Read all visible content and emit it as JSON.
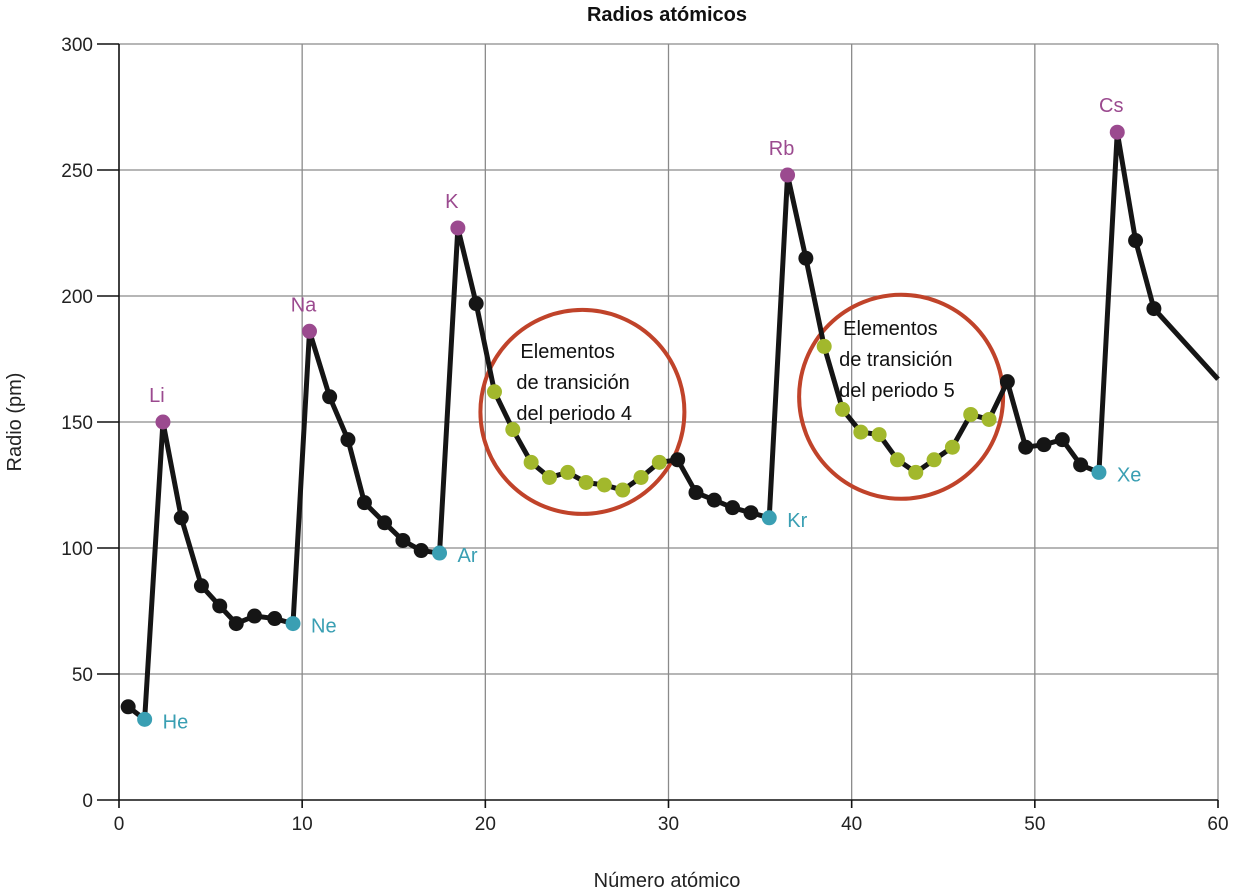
{
  "chart_data": {
    "type": "line",
    "title": "Radios atómicos",
    "xlabel": "Número atómico",
    "ylabel": "Radio (pm)",
    "xlim": [
      0,
      60
    ],
    "ylim": [
      0,
      300
    ],
    "xticks": [
      "0",
      "10",
      "20",
      "30",
      "40",
      "50",
      "60"
    ],
    "yticks": [
      "0",
      "50",
      "100",
      "150",
      "200",
      "250",
      "300"
    ],
    "grid": true,
    "colors": {
      "line": "#151515",
      "default": "#151515",
      "alkali": "#9b4a8f",
      "noble": "#3a9fb3",
      "transition": "#a2b82c",
      "circle": "#c0432a"
    },
    "series": [
      {
        "points": [
          {
            "x": 0.5,
            "y": 37,
            "group": "default"
          },
          {
            "x": 1.4,
            "y": 32,
            "group": "noble",
            "label": "He"
          },
          {
            "x": 2.4,
            "y": 150,
            "group": "alkali",
            "label": "Li"
          },
          {
            "x": 3.4,
            "y": 112,
            "group": "default"
          },
          {
            "x": 4.5,
            "y": 85,
            "group": "default"
          },
          {
            "x": 5.5,
            "y": 77,
            "group": "default"
          },
          {
            "x": 6.4,
            "y": 70,
            "group": "default"
          },
          {
            "x": 7.4,
            "y": 73,
            "group": "default"
          },
          {
            "x": 8.5,
            "y": 72,
            "group": "default"
          },
          {
            "x": 9.5,
            "y": 70,
            "group": "noble",
            "label": "Ne"
          },
          {
            "x": 10.4,
            "y": 186,
            "group": "alkali",
            "label": "Na"
          },
          {
            "x": 11.5,
            "y": 160,
            "group": "default"
          },
          {
            "x": 12.5,
            "y": 143,
            "group": "default"
          },
          {
            "x": 13.4,
            "y": 118,
            "group": "default"
          },
          {
            "x": 14.5,
            "y": 110,
            "group": "default"
          },
          {
            "x": 15.5,
            "y": 103,
            "group": "default"
          },
          {
            "x": 16.5,
            "y": 99,
            "group": "default"
          },
          {
            "x": 17.5,
            "y": 98,
            "group": "noble",
            "label": "Ar"
          },
          {
            "x": 18.5,
            "y": 227,
            "group": "alkali",
            "label": "K"
          },
          {
            "x": 19.5,
            "y": 197,
            "group": "default"
          },
          {
            "x": 20.5,
            "y": 162,
            "group": "transition"
          },
          {
            "x": 21.5,
            "y": 147,
            "group": "transition"
          },
          {
            "x": 22.5,
            "y": 134,
            "group": "transition"
          },
          {
            "x": 23.5,
            "y": 128,
            "group": "transition"
          },
          {
            "x": 24.5,
            "y": 130,
            "group": "transition"
          },
          {
            "x": 25.5,
            "y": 126,
            "group": "transition"
          },
          {
            "x": 26.5,
            "y": 125,
            "group": "transition"
          },
          {
            "x": 27.5,
            "y": 123,
            "group": "transition"
          },
          {
            "x": 28.5,
            "y": 128,
            "group": "transition"
          },
          {
            "x": 29.5,
            "y": 134,
            "group": "transition"
          },
          {
            "x": 30.5,
            "y": 135,
            "group": "default"
          },
          {
            "x": 31.5,
            "y": 122,
            "group": "default"
          },
          {
            "x": 32.5,
            "y": 119,
            "group": "default"
          },
          {
            "x": 33.5,
            "y": 116,
            "group": "default"
          },
          {
            "x": 34.5,
            "y": 114,
            "group": "default"
          },
          {
            "x": 35.5,
            "y": 112,
            "group": "noble",
            "label": "Kr"
          },
          {
            "x": 36.5,
            "y": 248,
            "group": "alkali",
            "label": "Rb"
          },
          {
            "x": 37.5,
            "y": 215,
            "group": "default"
          },
          {
            "x": 38.5,
            "y": 180,
            "group": "transition"
          },
          {
            "x": 39.5,
            "y": 155,
            "group": "transition"
          },
          {
            "x": 40.5,
            "y": 146,
            "group": "transition"
          },
          {
            "x": 41.5,
            "y": 145,
            "group": "transition"
          },
          {
            "x": 42.5,
            "y": 135,
            "group": "transition"
          },
          {
            "x": 43.5,
            "y": 130,
            "group": "transition"
          },
          {
            "x": 44.5,
            "y": 135,
            "group": "transition"
          },
          {
            "x": 45.5,
            "y": 140,
            "group": "transition"
          },
          {
            "x": 46.5,
            "y": 153,
            "group": "transition"
          },
          {
            "x": 47.5,
            "y": 151,
            "group": "transition"
          },
          {
            "x": 48.5,
            "y": 166,
            "group": "default"
          },
          {
            "x": 49.5,
            "y": 140,
            "group": "default"
          },
          {
            "x": 50.5,
            "y": 141,
            "group": "default"
          },
          {
            "x": 51.5,
            "y": 143,
            "group": "default"
          },
          {
            "x": 52.5,
            "y": 133,
            "group": "default"
          },
          {
            "x": 53.5,
            "y": 130,
            "group": "noble",
            "label": "Xe"
          },
          {
            "x": 54.5,
            "y": 265,
            "group": "alkali",
            "label": "Cs"
          },
          {
            "x": 55.5,
            "y": 222,
            "group": "default"
          },
          {
            "x": 56.5,
            "y": 195,
            "group": "default"
          },
          {
            "x": 60,
            "y": 167,
            "group": "none"
          }
        ]
      }
    ],
    "annotations": [
      {
        "lines": [
          "Elementos",
          "de transición",
          "del periodo 4"
        ],
        "center": [
          25.3,
          154
        ]
      },
      {
        "lines": [
          "Elementos",
          "de transición",
          "del periodo 5"
        ],
        "center": [
          42.7,
          160
        ]
      }
    ]
  }
}
